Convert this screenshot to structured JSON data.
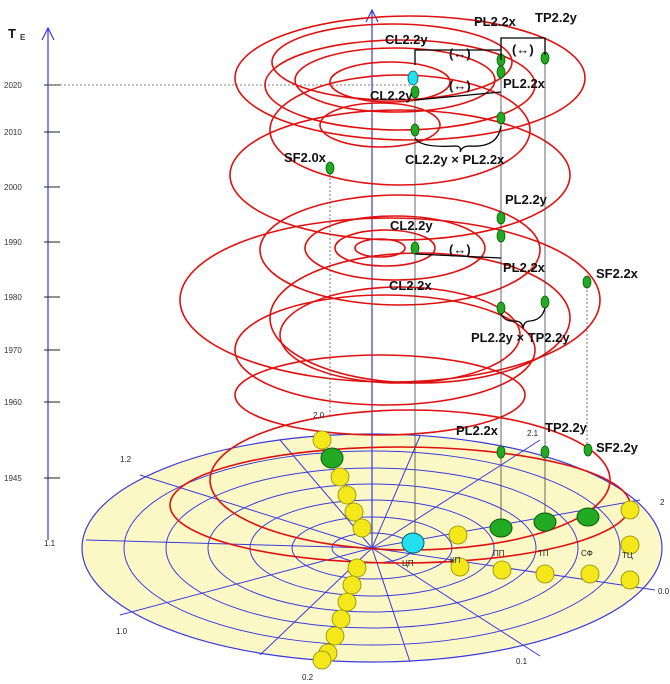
{
  "axis": {
    "title_main": "T",
    "title_sub": "E",
    "years": [
      "2020",
      "2010",
      "2000",
      "1990",
      "1980",
      "1970",
      "1960",
      "1945"
    ]
  },
  "disk_labels": {
    "top": "2.0",
    "left_upper": "1.2",
    "left": "1.1",
    "left_lower": "1.0",
    "bottom": "0.2",
    "bottom_right": "0.1",
    "right": "0.0",
    "right_upper": "2",
    "inner_21": "2.1",
    "sector_ЦП": "ЦП",
    "sector_КП": "КП",
    "sector_ПП": "ПП",
    "sector_ТП": "ТП",
    "sector_СФ": "СФ",
    "sector_ТЦ": "ТЦ"
  },
  "labels": {
    "cl22y_top": "CL2.2y",
    "pl22x_top": "PL2.2x",
    "tp22y_top": "TP2.2y",
    "arrow_a": "(↔)",
    "arrow_b": "(↔)",
    "arrow_c": "(↔)",
    "pl22x_2020": "PL2.2x",
    "cl22y_2020": "CL2.2y",
    "cross_2010": "CL2.2y × PL2.2x",
    "sf20x": "SF2.0x",
    "pl22y_1995": "PL2.2y",
    "cl22y_1990": "CL2.2y",
    "arrow_1988": "(↔)",
    "pl22x_1985": "PL2.2x",
    "cl22x_1983": "CL2.2x",
    "sf22x": "SF2.2x",
    "cross_1975": "PL2.2y × TP2.2y",
    "pl22x_disk": "PL2.2x",
    "tp22y_disk": "TP2.2y",
    "sf22y_disk": "SF2.2y"
  }
}
